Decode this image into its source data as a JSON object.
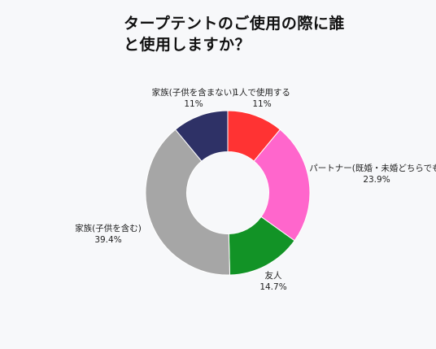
{
  "chart_data": {
    "type": "pie",
    "title": "タープテントのご使用の際に誰と使用しますか？",
    "hole": 0.5,
    "slices": [
      {
        "label": "1人で使用する",
        "value": 11,
        "value_label": "11%",
        "color": "#ff3333"
      },
      {
        "label": "パートナー(既婚・未婚どちらでも)",
        "value": 23.9,
        "value_label": "23.9%",
        "color": "#ff66cc"
      },
      {
        "label": "友人",
        "value": 14.7,
        "value_label": "14.7%",
        "color": "#129326"
      },
      {
        "label": "家族(子供を含む)",
        "value": 39.4,
        "value_label": "39.4%",
        "color": "#a6a6a6"
      },
      {
        "label": "家族(子供を含まない)",
        "value": 11,
        "value_label": "11%",
        "color": "#2e3166"
      }
    ]
  }
}
